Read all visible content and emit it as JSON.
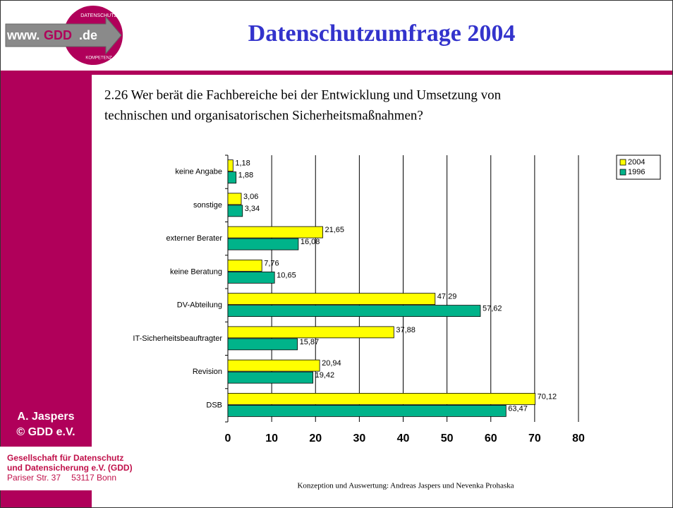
{
  "logo": {
    "prefix": "www.",
    "brand": "GDD",
    "suffix": ".de",
    "top": "DATENSCHUTZ",
    "bottom": "KOMPETENZ"
  },
  "title": "Datenschutzumfrage 2004",
  "author": "A. Jaspers",
  "copyright": "© GDD e.V.",
  "address": [
    "Gesellschaft für Datenschutz",
    "und Datensicherung e.V. (GDD)",
    "Pariser Str. 37",
    "53117 Bonn"
  ],
  "footer": "Konzeption und Auswertung: Andreas Jaspers und Nevenka Prohaska",
  "chart_data": {
    "type": "hbar",
    "title": [
      "2.26 Wer berät die Fachbereiche bei der Entwicklung und Umsetzung von",
      "technischen und organisatorischen Sicherheitsmaßnahmen?"
    ],
    "categories": [
      "keine Angabe",
      "sonstige",
      "externer Berater",
      "keine Beratung",
      "DV-Abteilung",
      "IT-Sicherheitsbeauftragter",
      "Revision",
      "DSB"
    ],
    "series": [
      {
        "name": "2004",
        "color": "#ffff00",
        "values": [
          1.18,
          3.06,
          21.65,
          7.76,
          47.29,
          37.88,
          20.94,
          70.12
        ],
        "value_labels": [
          "1,18",
          "3,06",
          "21,65",
          "7,76",
          "47,29",
          "37,88",
          "20,94",
          "70,12"
        ]
      },
      {
        "name": "1996",
        "color": "#00b38a",
        "values": [
          1.88,
          3.34,
          16.08,
          10.65,
          57.62,
          15.87,
          19.42,
          63.47
        ],
        "value_labels": [
          "1,88",
          "3,34",
          "16,08",
          "10,65",
          "57,62",
          "15,87",
          "19,42",
          "63,47"
        ]
      }
    ],
    "xlim": [
      0,
      80
    ],
    "xticks": [
      0,
      10,
      20,
      30,
      40,
      50,
      60,
      70,
      80
    ],
    "grid": true,
    "legend": "top-right"
  }
}
